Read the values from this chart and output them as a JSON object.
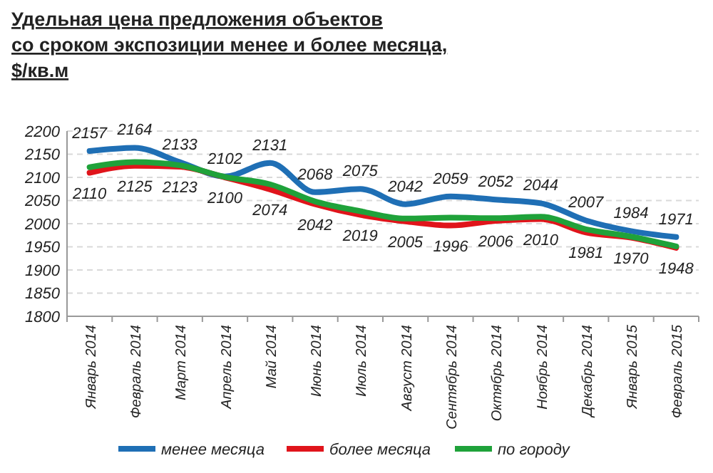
{
  "chart_data": {
    "type": "line",
    "title": "Удельная цена предложения  объектов\nсо сроком экспозиции менее и более месяца,\n$/кв.м",
    "categories": [
      "Январь 2014",
      "Февраль 2014",
      "Март 2014",
      "Апрель 2014",
      "Май 2014",
      "Июнь 2014",
      "Июль 2014",
      "Август 2014",
      "Сентябрь 2014",
      "Октябрь 2014",
      "Ноябрь 2014",
      "Декабрь 2014",
      "Январь 2015",
      "Февраль 2015"
    ],
    "series": [
      {
        "name": "менее месяца",
        "color": "#1f6fb5",
        "values": [
          2157,
          2164,
          2133,
          2102,
          2131,
          2068,
          2075,
          2042,
          2059,
          2052,
          2044,
          2007,
          1984,
          1971
        ],
        "value_labels": [
          "2157",
          "2164",
          "2133",
          "2102",
          "2131",
          "2068",
          "2075",
          "2042",
          "2059",
          "2052",
          "2044",
          "2007",
          "1984",
          "1971"
        ]
      },
      {
        "name": "более месяца",
        "color": "#e0141b",
        "values": [
          2110,
          2125,
          2123,
          2100,
          2074,
          2042,
          2019,
          2005,
          1996,
          2006,
          2010,
          1981,
          1970,
          1948
        ],
        "value_labels": [
          "2110",
          "2125",
          "2123",
          "2100",
          "2074",
          "2042",
          "2019",
          "2005",
          "1996",
          "2006",
          "2010",
          "1981",
          "1970",
          "1948"
        ]
      },
      {
        "name": "по городу",
        "color": "#1fa23a",
        "values": [
          2122,
          2133,
          2126,
          2101,
          2085,
          2048,
          2027,
          2011,
          2013,
          2012,
          2015,
          1988,
          1972,
          1951
        ]
      }
    ],
    "ylim": [
      1800,
      2200
    ],
    "yticks": [
      1800,
      1850,
      1900,
      1950,
      2000,
      2050,
      2100,
      2150,
      2200
    ],
    "grid": "y",
    "legend": "bottom",
    "line_style": "solid",
    "marker": "none"
  }
}
